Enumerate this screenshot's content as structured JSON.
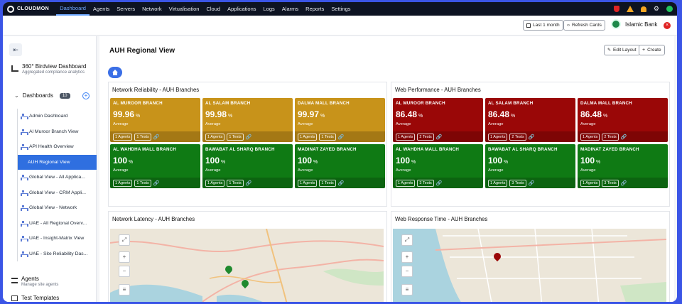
{
  "brand": "CLOUDMON",
  "nav": [
    "Dashboard",
    "Agents",
    "Servers",
    "Network",
    "Virtualisation",
    "Cloud",
    "Applications",
    "Logs",
    "Alarms",
    "Reports",
    "Settings"
  ],
  "toolbar": {
    "period": "Last 1 month",
    "refresh": "Refresh Cards",
    "org": "Islamic Bank"
  },
  "sidebar": {
    "birdview_title": "360° Birdview Dashboard",
    "birdview_sub": "Aggregated compliance analytics",
    "dashboards_label": "Dashboards",
    "dashboards_count": "10",
    "items": [
      "Admin Dashboard",
      "Al Muroor Branch View",
      "API Health Overview",
      "AUH Regional View",
      "Global View - All Applica...",
      "Global View - CRM Appli...",
      "Global View - Network",
      "UAE - All Regional Overv...",
      "UAE - Insight-Matrix View",
      "UAE - Site Reliability Das..."
    ],
    "agents_title": "Agents",
    "agents_sub": "Manage site agents",
    "templates_title": "Test Templates"
  },
  "main": {
    "title": "AUH Regional View",
    "edit_layout": "Edit Layout",
    "create": "Create"
  },
  "panels": {
    "reliability": {
      "title": "Network Reliability - AUH Branches",
      "cards": [
        {
          "name": "AL MUROOR BRANCH",
          "value": "99.96",
          "unit": "%",
          "avg": "Average",
          "agents": "1 Agents",
          "tests": "1 Tests",
          "color": "#c8931a"
        },
        {
          "name": "AL SALAM BRANCH",
          "value": "99.98",
          "unit": "%",
          "avg": "Average",
          "agents": "1 Agents",
          "tests": "1 Tests",
          "color": "#c8931a"
        },
        {
          "name": "DALMA MALL BRANCH",
          "value": "99.97",
          "unit": "%",
          "avg": "Average",
          "agents": "1 Agents",
          "tests": "1 Tests",
          "color": "#c8931a"
        },
        {
          "name": "AL WAHDHA MALL BRANCH",
          "value": "100",
          "unit": "%",
          "avg": "Average",
          "agents": "1 Agents",
          "tests": "1 Tests",
          "color": "#0f7a14"
        },
        {
          "name": "BAWABAT AL SHARQ BRANCH",
          "value": "100",
          "unit": "%",
          "avg": "Average",
          "agents": "1 Agents",
          "tests": "1 Tests",
          "color": "#0f7a14"
        },
        {
          "name": "MADINAT ZAYED BRANCH",
          "value": "100",
          "unit": "%",
          "avg": "Average",
          "agents": "1 Agents",
          "tests": "1 Tests",
          "color": "#0f7a14"
        }
      ]
    },
    "web": {
      "title": "Web Performance - AUH Branches",
      "cards": [
        {
          "name": "AL MUROOR BRANCH",
          "value": "86.48",
          "unit": "%",
          "avg": "Average",
          "agents": "1 Agents",
          "tests": "2 Tests",
          "color": "#9a0707"
        },
        {
          "name": "AL SALAM BRANCH",
          "value": "86.48",
          "unit": "%",
          "avg": "Average",
          "agents": "1 Agents",
          "tests": "2 Tests",
          "color": "#9a0707"
        },
        {
          "name": "DALMA MALL BRANCH",
          "value": "86.48",
          "unit": "%",
          "avg": "Average",
          "agents": "1 Agents",
          "tests": "2 Tests",
          "color": "#9a0707"
        },
        {
          "name": "AL WAHDHA MALL BRANCH",
          "value": "100",
          "unit": "%",
          "avg": "Average",
          "agents": "1 Agents",
          "tests": "3 Tests",
          "color": "#0f7a14"
        },
        {
          "name": "BAWABAT AL SHARQ BRANCH",
          "value": "100",
          "unit": "%",
          "avg": "Average",
          "agents": "1 Agents",
          "tests": "3 Tests",
          "color": "#0f7a14"
        },
        {
          "name": "MADINAT ZAYED BRANCH",
          "value": "100",
          "unit": "%",
          "avg": "Average",
          "agents": "1 Agents",
          "tests": "3 Tests",
          "color": "#0f7a14"
        }
      ]
    },
    "latency": {
      "title": "Network Latency - AUH Branches"
    },
    "response": {
      "title": "Web Response Time - AUH Branches"
    }
  }
}
